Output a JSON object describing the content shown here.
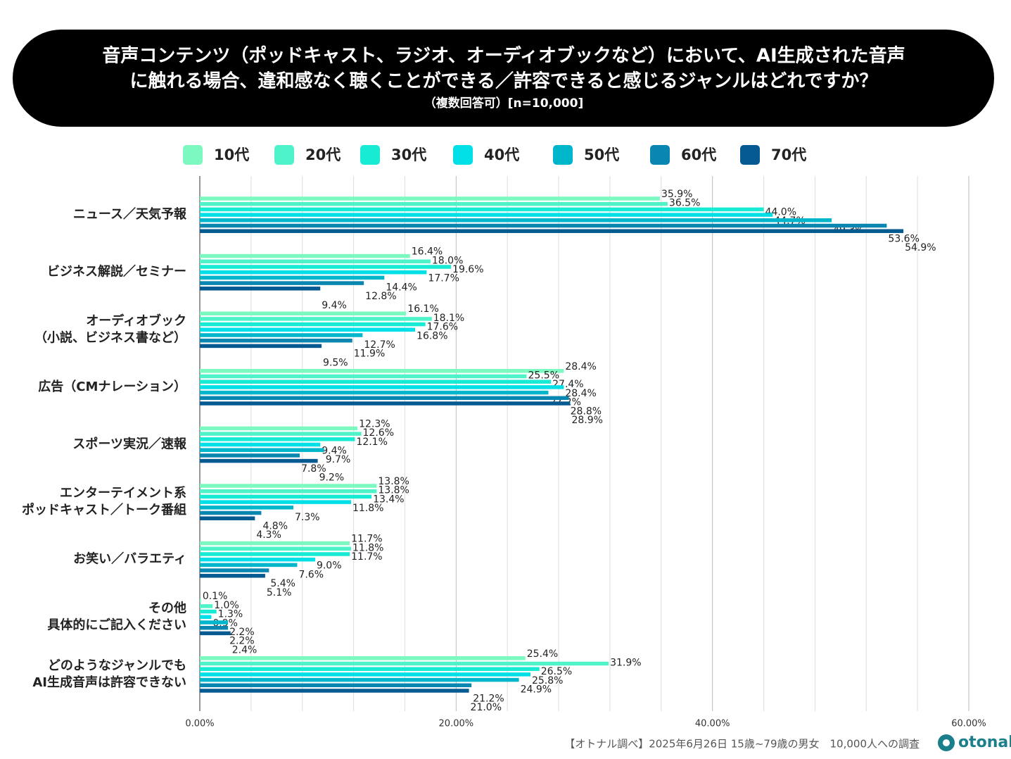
{
  "chart_data": {
    "type": "hbar",
    "title_lines": [
      "音声コンテンツ（ポッドキャスト、ラジオ、オーディオブックなど）において、AI生成された音声",
      "に触れる場合、違和感なく聴くことができる／許容できると感じるジャンルはどれですか？"
    ],
    "subtitle": "（複数回答可）[n=10,000]",
    "categories": [
      [
        "ニュース／天気予報"
      ],
      [
        "ビジネス解説／セミナー"
      ],
      [
        "オーディオブック",
        "（小説、ビジネス書など）"
      ],
      [
        "広告（CMナレーション）"
      ],
      [
        "スポーツ実況／速報"
      ],
      [
        "エンターテイメント系",
        "ポッドキャスト／トーク番組"
      ],
      [
        "お笑い／バラエティ"
      ],
      [
        "その他",
        "具体的にご記入ください"
      ],
      [
        "どのようなジャンルでも",
        "AI生成音声は許容できない"
      ]
    ],
    "series": [
      {
        "name": "10代",
        "color": "#7cf9c0",
        "values": [
          35.9,
          16.4,
          16.1,
          28.4,
          12.3,
          13.8,
          11.7,
          0.1,
          25.4
        ],
        "value_labels": [
          "35.9%",
          "16.4%",
          "16.1%",
          "28.4%",
          "12.3%",
          "13.8%",
          "11.7%",
          "0.1%",
          "25.4%"
        ]
      },
      {
        "name": "20代",
        "color": "#4ef3c9",
        "values": [
          36.5,
          18.0,
          18.1,
          25.5,
          12.6,
          13.8,
          11.8,
          1.0,
          31.9
        ],
        "value_labels": [
          "36.5%",
          "18.0%",
          "18.1%",
          "25.5%",
          "12.6%",
          "13.8%",
          "11.8%",
          "1.0%",
          "31.9%"
        ]
      },
      {
        "name": "30代",
        "color": "#17ebd4",
        "values": [
          44.0,
          19.6,
          17.6,
          27.4,
          12.1,
          13.4,
          11.7,
          1.3,
          26.5
        ],
        "value_labels": [
          "44.0%",
          "19.6%",
          "17.6%",
          "27.4%",
          "12.1%",
          "13.4%",
          "11.7%",
          "1.3%",
          "26.5%"
        ]
      },
      {
        "name": "40代",
        "color": "#00e0e6",
        "values": [
          44.7,
          17.7,
          16.8,
          28.4,
          9.4,
          11.8,
          9.0,
          0.9,
          25.8
        ],
        "value_labels": [
          "44.7%",
          "17.7%",
          "16.8%",
          "28.4%",
          "9.4%",
          "11.8%",
          "9.0%",
          "0.9%",
          "25.8%"
        ]
      },
      {
        "name": "50代",
        "color": "#00b6cb",
        "values": [
          49.3,
          14.4,
          12.7,
          27.2,
          9.7,
          7.3,
          7.6,
          2.2,
          24.9
        ],
        "value_labels": [
          "49.3%",
          "14.4%",
          "12.7%",
          "27.2%",
          "9.7%",
          "7.3%",
          "7.6%",
          "2.2%",
          "24.9%"
        ]
      },
      {
        "name": "60代",
        "color": "#0a87b0",
        "values": [
          53.6,
          12.8,
          11.9,
          28.8,
          7.8,
          4.8,
          5.4,
          2.2,
          21.2
        ],
        "value_labels": [
          "53.6%",
          "12.8%",
          "11.9%",
          "28.8%",
          "7.8%",
          "4.8%",
          "5.4%",
          "2.2%",
          "21.2%"
        ]
      },
      {
        "name": "70代",
        "color": "#055a92",
        "values": [
          54.9,
          9.4,
          9.5,
          28.9,
          9.2,
          4.3,
          5.1,
          2.4,
          21.0
        ],
        "value_labels": [
          "54.9%",
          "9.4%",
          "9.5%",
          "28.9%",
          "9.2%",
          "4.3%",
          "5.1%",
          "2.4%",
          "21.0%"
        ]
      }
    ],
    "xlim": [
      0,
      60
    ],
    "xticks": [
      {
        "value": 0,
        "label": "0.00%"
      },
      {
        "value": 20,
        "label": "20.00%"
      },
      {
        "value": 40,
        "label": "40.00%"
      },
      {
        "value": 60,
        "label": "60.00%"
      }
    ],
    "xgrid": [
      4,
      8,
      12,
      16,
      24,
      28,
      32,
      36,
      44,
      48,
      52,
      56
    ],
    "grid": true,
    "legend": "top",
    "source": "【オトナル調べ】2025年6月26日 15歳~79歳の男女　10,000人への調査",
    "logo": "otonal"
  }
}
